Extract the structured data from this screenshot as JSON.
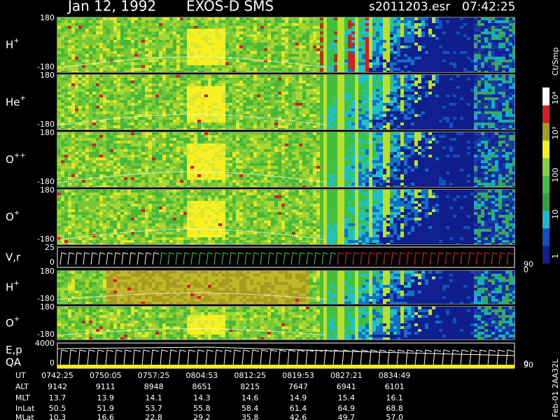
{
  "header": {
    "date": "Jan 12, 1992",
    "instrument": "EXOS-D SMS",
    "file": "s2011203.esr",
    "time": "07:42:25"
  },
  "panels": [
    {
      "label": "H",
      "charge": "+",
      "left_ticks": [
        "180",
        "-180"
      ]
    },
    {
      "label": "He",
      "charge": "+",
      "left_ticks": [
        "180",
        "-180"
      ]
    },
    {
      "label": "O",
      "charge": "++",
      "left_ticks": [
        "180",
        "-180"
      ]
    },
    {
      "label": "O",
      "charge": "+",
      "left_ticks": [
        "180",
        "-180"
      ]
    },
    {
      "label": "V,r",
      "left_ticks": [
        "25",
        "0"
      ],
      "right_ticks": [
        "90",
        "0"
      ]
    },
    {
      "label": "H",
      "charge": "+",
      "left_ticks": [
        "180",
        "-180"
      ]
    },
    {
      "label": "O",
      "charge": "+",
      "left_ticks": [
        "180",
        "-180"
      ]
    },
    {
      "label": "E,p",
      "label2": "QA",
      "left_ticks": [
        "4000",
        "0"
      ],
      "right_ticks": [
        "90",
        "0"
      ]
    }
  ],
  "colorbar": {
    "unit": "Ct/Smp",
    "labels": [
      "10⁴",
      "10³",
      "100",
      "10",
      "1"
    ]
  },
  "table": {
    "rows": [
      {
        "label": "UT",
        "values": [
          "0742:25",
          "0750:05",
          "0757:25",
          "0804:53",
          "0812:25",
          "0819:53",
          "0827:21",
          "0834:49"
        ]
      },
      {
        "label": "ALT",
        "values": [
          "9142",
          "9111",
          "8948",
          "8651",
          "8215",
          "7647",
          "6941",
          "6101"
        ]
      },
      {
        "label": "MLT",
        "values": [
          "13.7",
          "13.9",
          "14.1",
          "14.3",
          "14.6",
          "14.9",
          "15.4",
          "16.1"
        ]
      },
      {
        "label": "InLat",
        "values": [
          "50.5",
          "51.9",
          "53.7",
          "55.8",
          "58.4",
          "61.4",
          "64.9",
          "68.8"
        ]
      },
      {
        "label": "MLat",
        "values": [
          "10.3",
          "16.6",
          "22.8",
          "29.2",
          "35.8",
          "42.6",
          "49.7",
          "57.0"
        ]
      }
    ]
  },
  "footer": "Feb-01 2AA32L"
}
